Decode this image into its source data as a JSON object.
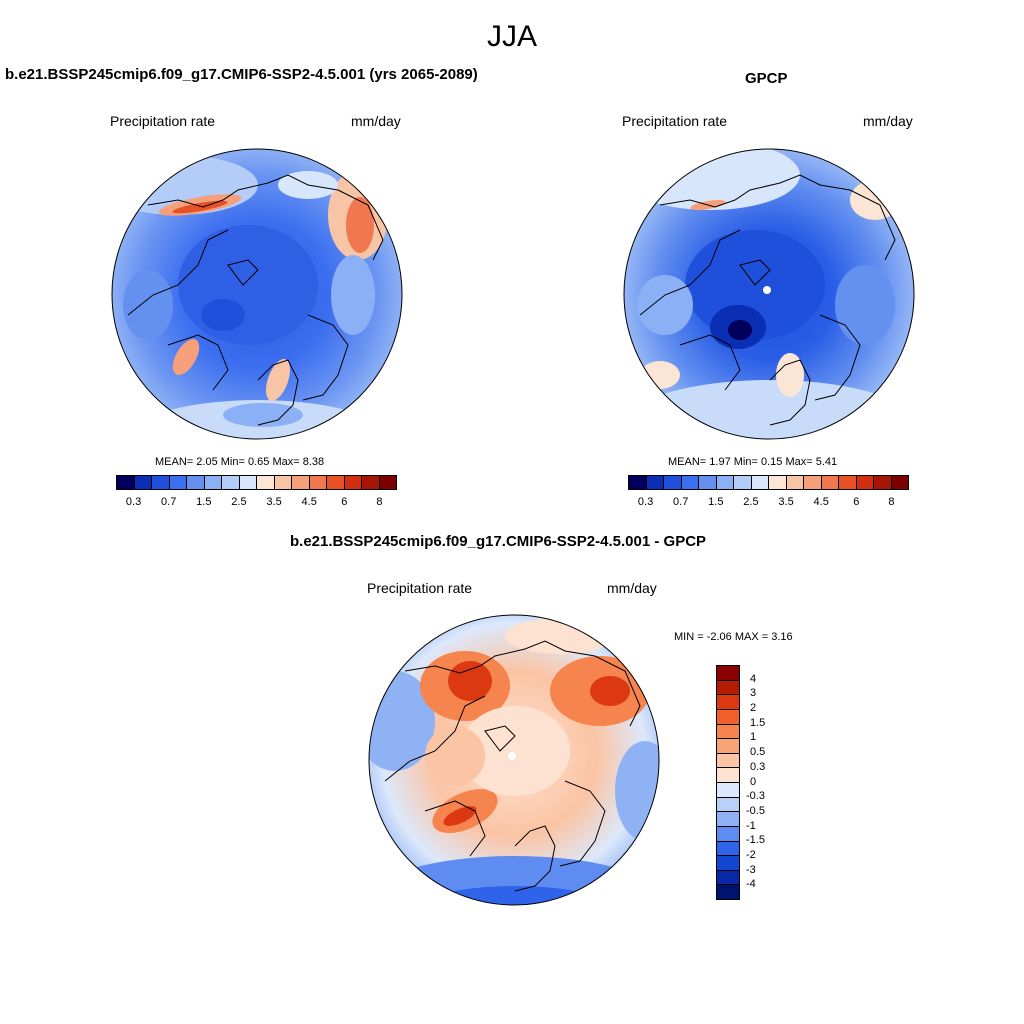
{
  "page": {
    "title": "JJA"
  },
  "panels": {
    "model": {
      "title": "b.e21.BSSP245cmip6.f09_g17.CMIP6-SSP2-4.5.001 (yrs 2065-2089)",
      "variable": "Precipitation rate",
      "units": "mm/day",
      "stats": {
        "mean_label": "MEAN=",
        "mean": "2.05",
        "min_label": "Min=",
        "min": "0.65",
        "max_label": "Max=",
        "max": "8.38"
      }
    },
    "obs": {
      "title": "GPCP",
      "variable": "Precipitation rate",
      "units": "mm/day",
      "stats": {
        "mean_label": "MEAN=",
        "mean": "1.97",
        "min_label": "Min=",
        "min": "0.15",
        "max_label": "Max=",
        "max": "5.41"
      }
    },
    "diff": {
      "title": "b.e21.BSSP245cmip6.f09_g17.CMIP6-SSP2-4.5.001 - GPCP",
      "variable": "Precipitation rate",
      "units": "mm/day",
      "stats": {
        "min_label": "MIN =",
        "min": "-2.06",
        "max_label": "MAX =",
        "max": "3.16"
      }
    }
  },
  "colorbars": {
    "precip": {
      "colors": [
        "#00005c",
        "#0a2fb4",
        "#1e50dc",
        "#3c6ef0",
        "#6490f0",
        "#8cb0f5",
        "#b4cdf8",
        "#d7e6fa",
        "#fbe6d6",
        "#f8c4a6",
        "#f5a07a",
        "#f0784e",
        "#e85028",
        "#d22e12",
        "#a81406",
        "#7c0000"
      ],
      "labels": [
        "0.3",
        "0.7",
        "1.5",
        "2.5",
        "3.5",
        "4.5",
        "6",
        "8"
      ]
    },
    "diff": {
      "colors": [
        "#8b0000",
        "#b41c04",
        "#dc3812",
        "#f0602c",
        "#f5844e",
        "#f8a476",
        "#fbc4a4",
        "#fde2d2",
        "#dce8fb",
        "#b9d0f8",
        "#8eb2f4",
        "#5f8cf0",
        "#2e63ea",
        "#1446d4",
        "#0828a8",
        "#00136e"
      ],
      "labels": [
        "4",
        "3",
        "2",
        "1.5",
        "1",
        "0.5",
        "0.3",
        "0",
        "-0.3",
        "-0.5",
        "-1",
        "-1.5",
        "-2",
        "-3",
        "-4"
      ]
    }
  },
  "chart_data": [
    {
      "type": "heatmap",
      "title": "b.e21.BSSP245cmip6.f09_g17.CMIP6-SSP2-4.5.001 (yrs 2065-2089)",
      "projection": "north polar stereographic",
      "variable": "Precipitation rate",
      "units": "mm/day",
      "levels": [
        0.3,
        0.5,
        0.7,
        1,
        1.5,
        2,
        2.5,
        3,
        3.5,
        4,
        4.5,
        5,
        6,
        7,
        8
      ],
      "mean": 2.05,
      "min": 0.65,
      "max": 8.38
    },
    {
      "type": "heatmap",
      "title": "GPCP",
      "projection": "north polar stereographic",
      "variable": "Precipitation rate",
      "units": "mm/day",
      "levels": [
        0.3,
        0.5,
        0.7,
        1,
        1.5,
        2,
        2.5,
        3,
        3.5,
        4,
        4.5,
        5,
        6,
        7,
        8
      ],
      "mean": 1.97,
      "min": 0.15,
      "max": 5.41
    },
    {
      "type": "heatmap",
      "title": "b.e21.BSSP245cmip6.f09_g17.CMIP6-SSP2-4.5.001 - GPCP",
      "projection": "north polar stereographic",
      "variable": "Precipitation rate",
      "units": "mm/day",
      "levels": [
        -4,
        -3,
        -2,
        -1.5,
        -1,
        -0.5,
        -0.3,
        0,
        0.3,
        0.5,
        1,
        1.5,
        2,
        3,
        4
      ],
      "min": -2.06,
      "max": 3.16
    }
  ]
}
